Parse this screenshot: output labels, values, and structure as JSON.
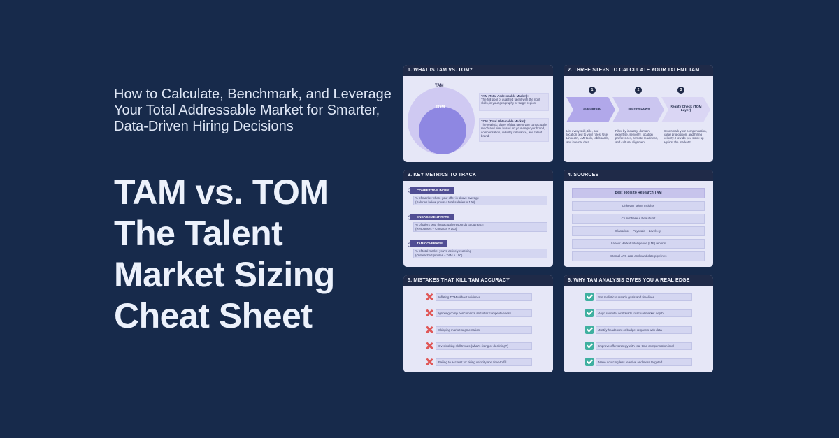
{
  "subtitle": "How to Calculate, Benchmark, and Leverage Your Total Addressable Market for Smarter, Data-Driven Hiring Decisions",
  "title": "TAM vs. TOM The Talent Market Sizing Cheat Sheet",
  "colors": {
    "background": "#172a4b",
    "card_header": "#1f2a48",
    "card_body": "#e6e7f7",
    "accent": "#514e94",
    "check": "#3fb0a0",
    "cross": "#e05757"
  },
  "card1": {
    "title": "1. WHAT IS TAM VS. TOM?",
    "tam_label": "TAM",
    "tom_label": "TOM",
    "tam_desc_title": "TAM (Total Addressable Market):",
    "tam_desc": "The full pool of qualified talent with the right skills, in your geography or target region.",
    "tom_desc_title": "TOM (Total Obtainable Market):",
    "tom_desc": "The realistic share of that talent you can actually reach and hire, based on your employer brand, compensation, industry relevance, and talent brand."
  },
  "card2": {
    "title": "2. THREE STEPS TO CALCULATE YOUR TALENT TAM",
    "steps": [
      {
        "num": "1",
        "label": "Start Broad",
        "desc": "List every skill, title, and location tied to your roles. Use LinkedIn, LMI tools, job boards, and internal data."
      },
      {
        "num": "2",
        "label": "Narrow Down",
        "desc": "Filter by industry, domain expertise, seniority, location preferences, remote-readiness, and cultural alignment."
      },
      {
        "num": "3",
        "label": "Reality Check (TOM Layer)",
        "desc": "Benchmark your compensation, value proposition, and hiring velocity. How do you stack up against the market?"
      }
    ]
  },
  "card3": {
    "title": "3. KEY METRICS TO TRACK",
    "metrics": [
      {
        "name": "COMPETITIVE INDEX",
        "line1": "% of market where your offer is above average",
        "line2": "(Salaries below yours ÷ total salaries × 100)"
      },
      {
        "name": "ENGAGEMENT RATE",
        "line1": "% of talent pool that actually responds to outreach",
        "line2": "(Responses ÷ Contacts × 100)"
      },
      {
        "name": "TAM COVERAGE",
        "line1": "% of total market you're actively reaching",
        "line2": "(Outreached profiles ÷ TAM × 100)"
      }
    ]
  },
  "card4": {
    "title": "4. SOURCES",
    "heading": "Best Tools to Research TAM",
    "items": [
      "LinkedIn Talent Insights",
      "Crunchbase + Beauhurst",
      "Glassdoor + Payscale + Levels.fyi",
      "Labour Market Intelligence (LMI) reports",
      "Internal ATS data and candidate pipelines"
    ]
  },
  "card5": {
    "title": "5. MISTAKES THAT KILL TAM ACCURACY",
    "items": [
      "Inflating TOM without evidence",
      "Ignoring comp benchmarks and offer competitiveness",
      "Skipping market segmentation",
      "Overlooking skill trends (what's rising or declining?)",
      "Failing to account for hiring velocity and time-to-fill"
    ]
  },
  "card6": {
    "title": "6. WHY TAM ANALYSIS GIVES YOU A REAL EDGE",
    "items": [
      "Set realistic outreach goals and timelines",
      "Align recruiter workloads to actual market depth",
      "Justify headcount or budget requests with data",
      "Improve offer strategy with real-time compensation intel",
      "Make sourcing less reactive and more targeted"
    ]
  }
}
